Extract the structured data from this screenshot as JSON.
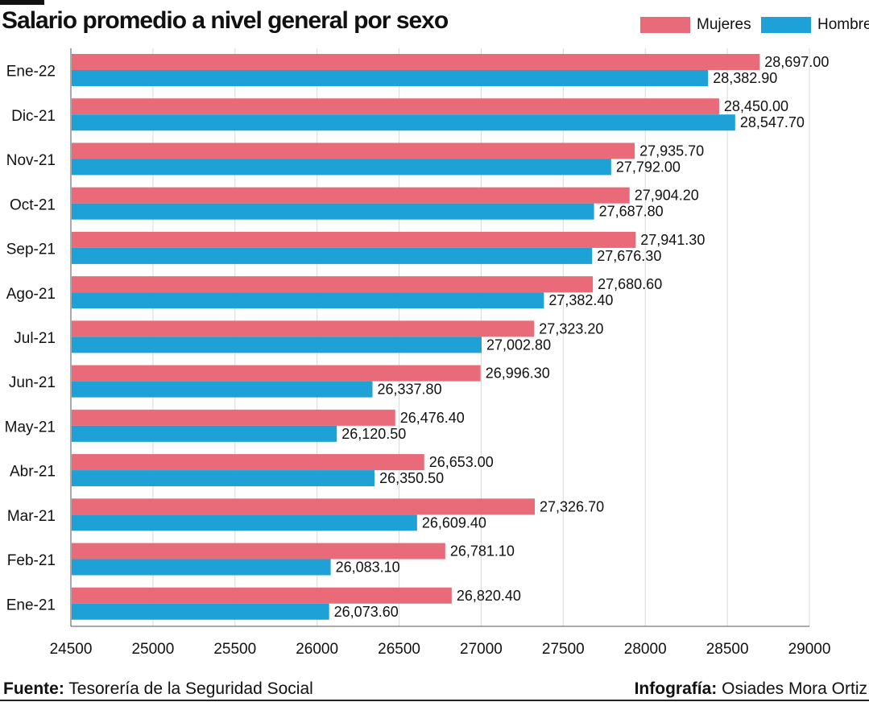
{
  "header": {
    "title": "Salario promedio a nivel general por sexo"
  },
  "footer": {
    "source_label": "Fuente:",
    "source_text": "Tesorería de la Seguridad Social",
    "credit_label": "Infografía:",
    "credit_text": "Osiades Mora Ortiz"
  },
  "colors": {
    "mujeres": "#e96a78",
    "hombres": "#1ea1d6",
    "grid": "#d9d9d9",
    "axis": "#555555"
  },
  "chart_data": {
    "type": "bar",
    "orientation": "horizontal",
    "title": "Salario promedio a nivel general por sexo",
    "categories": [
      "Ene-22",
      "Dic-21",
      "Nov-21",
      "Oct-21",
      "Sep-21",
      "Ago-21",
      "Jul-21",
      "Jun-21",
      "May-21",
      "Abr-21",
      "Mar-21",
      "Feb-21",
      "Ene-21"
    ],
    "series": [
      {
        "name": "Mujeres",
        "values": [
          28697.0,
          28450.0,
          27935.7,
          27904.2,
          27941.3,
          27680.6,
          27323.2,
          26996.3,
          26476.4,
          26653.0,
          27326.7,
          26781.1,
          26820.4
        ],
        "labels": [
          "28,697.00",
          "28,450.00",
          "27,935.70",
          "27,904.20",
          "27,941.30",
          "27,680.60",
          "27,323.20",
          "26,996.30",
          "26,476.40",
          "26,653.00",
          "27,326.70",
          "26,781.10",
          "26,820.40"
        ]
      },
      {
        "name": "Hombres",
        "values": [
          28382.9,
          28547.7,
          27792.0,
          27687.8,
          27676.3,
          27382.4,
          27002.8,
          26337.8,
          26120.5,
          26350.5,
          26609.4,
          26083.1,
          26073.6
        ],
        "labels": [
          "28,382.90",
          "28,547.70",
          "27,792.00",
          "27,687.80",
          "27,676.30",
          "27,382.40",
          "27,002.80",
          "26,337.80",
          "26,120.50",
          "26,350.50",
          "26,609.40",
          "26,083.10",
          "26,073.60"
        ]
      }
    ],
    "xlim": [
      24500,
      29000
    ],
    "xticks": [
      "24500",
      "25000",
      "25500",
      "26000",
      "26500",
      "27000",
      "27500",
      "28000",
      "28500",
      "29000"
    ],
    "grid": true,
    "legend_position": "top-right"
  }
}
